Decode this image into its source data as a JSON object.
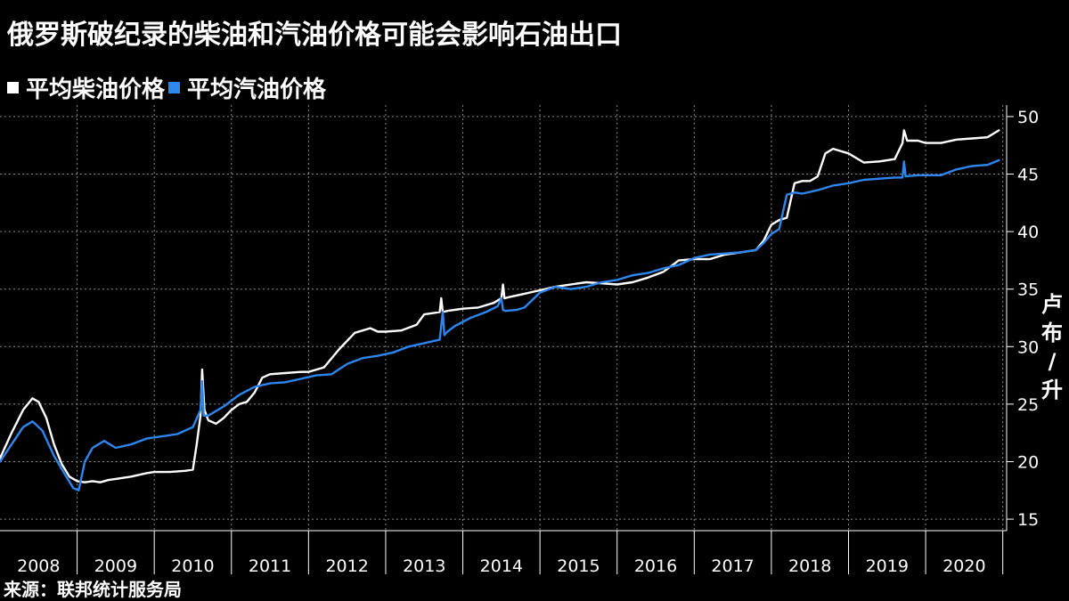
{
  "title": "俄罗斯破纪录的柴油和汽油价格可能会影响石油出口",
  "source": "来源：联邦统计服务局",
  "colors": {
    "background": "#000000",
    "diesel": "#ffffff",
    "gasoline": "#2e86f0",
    "grid": "#8a8a8a",
    "text": "#ffffff"
  },
  "chart_data": {
    "type": "line",
    "title": "俄罗斯破纪录的柴油和汽油价格可能会影响石油出口",
    "xlabel": "",
    "ylabel": "卢布/升",
    "ylim": [
      14,
      51
    ],
    "yticks": [
      15,
      20,
      25,
      30,
      35,
      40,
      45,
      50
    ],
    "xlim": [
      2008.0,
      2021.05
    ],
    "xticklabels": [
      "2008",
      "2009",
      "2010",
      "2011",
      "2012",
      "2013",
      "2014",
      "2015",
      "2016",
      "2017",
      "2018",
      "2019",
      "2020"
    ],
    "grid": true,
    "legend_position": "top-left",
    "series": [
      {
        "name": "平均柴油价格",
        "color": "#ffffff",
        "x": [
          2008.0,
          2008.15,
          2008.3,
          2008.42,
          2008.5,
          2008.6,
          2008.7,
          2008.8,
          2008.9,
          2009.0,
          2009.1,
          2009.2,
          2009.3,
          2009.4,
          2009.5,
          2009.7,
          2009.9,
          2010.0,
          2010.2,
          2010.4,
          2010.5,
          2010.55,
          2010.6,
          2010.62,
          2010.65,
          2010.7,
          2010.8,
          2010.9,
          2011.0,
          2011.1,
          2011.2,
          2011.3,
          2011.4,
          2011.5,
          2011.7,
          2011.9,
          2012.0,
          2012.2,
          2012.4,
          2012.6,
          2012.8,
          2012.9,
          2013.0,
          2013.2,
          2013.4,
          2013.5,
          2013.6,
          2013.7,
          2013.72,
          2013.74,
          2013.8,
          2014.0,
          2014.2,
          2014.4,
          2014.5,
          2014.52,
          2014.54,
          2014.6,
          2014.8,
          2015.0,
          2015.2,
          2015.4,
          2015.6,
          2015.8,
          2016.0,
          2016.2,
          2016.4,
          2016.6,
          2016.8,
          2017.0,
          2017.2,
          2017.4,
          2017.6,
          2017.8,
          2017.9,
          2018.0,
          2018.1,
          2018.2,
          2018.3,
          2018.4,
          2018.5,
          2018.6,
          2018.7,
          2018.8,
          2019.0,
          2019.2,
          2019.4,
          2019.6,
          2019.7,
          2019.72,
          2019.76,
          2019.9,
          2020.0,
          2020.2,
          2020.4,
          2020.6,
          2020.8,
          2020.95
        ],
        "y": [
          20.3,
          22.5,
          24.5,
          25.5,
          25.2,
          23.8,
          21.5,
          19.8,
          18.7,
          18.3,
          18.2,
          18.3,
          18.2,
          18.4,
          18.5,
          18.7,
          19.0,
          19.1,
          19.1,
          19.2,
          19.3,
          21.5,
          24.0,
          28.0,
          24.5,
          23.6,
          23.3,
          23.8,
          24.5,
          25.0,
          25.2,
          26.0,
          27.3,
          27.6,
          27.7,
          27.8,
          27.8,
          28.2,
          29.8,
          31.2,
          31.6,
          31.3,
          31.3,
          31.4,
          31.9,
          32.8,
          32.9,
          33.0,
          34.2,
          33.0,
          33.1,
          33.3,
          33.4,
          33.8,
          34.2,
          35.4,
          34.2,
          34.3,
          34.6,
          34.9,
          35.2,
          35.4,
          35.6,
          35.5,
          35.4,
          35.6,
          36.0,
          36.5,
          37.5,
          37.6,
          37.6,
          38.0,
          38.2,
          38.4,
          39.2,
          40.6,
          41.0,
          41.2,
          44.2,
          44.4,
          44.4,
          44.8,
          46.8,
          47.2,
          46.8,
          46.0,
          46.1,
          46.3,
          47.7,
          48.8,
          47.9,
          47.9,
          47.7,
          47.7,
          48.0,
          48.1,
          48.2,
          48.8
        ]
      },
      {
        "name": "平均汽油价格",
        "color": "#2e86f0",
        "x": [
          2008.0,
          2008.15,
          2008.3,
          2008.42,
          2008.55,
          2008.7,
          2008.85,
          2008.95,
          2009.02,
          2009.1,
          2009.2,
          2009.35,
          2009.5,
          2009.7,
          2009.9,
          2010.1,
          2010.3,
          2010.5,
          2010.6,
          2010.62,
          2010.64,
          2010.7,
          2010.9,
          2011.1,
          2011.3,
          2011.5,
          2011.7,
          2011.9,
          2012.1,
          2012.3,
          2012.5,
          2012.7,
          2012.9,
          2013.1,
          2013.3,
          2013.5,
          2013.7,
          2013.74,
          2013.76,
          2013.8,
          2013.9,
          2014.1,
          2014.3,
          2014.45,
          2014.5,
          2014.52,
          2014.55,
          2014.7,
          2014.8,
          2015.0,
          2015.2,
          2015.4,
          2015.6,
          2015.8,
          2016.0,
          2016.2,
          2016.4,
          2016.6,
          2016.8,
          2017.0,
          2017.2,
          2017.4,
          2017.6,
          2017.8,
          2017.9,
          2018.0,
          2018.1,
          2018.2,
          2018.3,
          2018.4,
          2018.6,
          2018.8,
          2019.0,
          2019.2,
          2019.4,
          2019.6,
          2019.7,
          2019.72,
          2019.74,
          2019.9,
          2020.0,
          2020.2,
          2020.4,
          2020.6,
          2020.8,
          2020.95
        ],
        "y": [
          20.0,
          21.5,
          23.0,
          23.5,
          22.7,
          20.5,
          18.8,
          17.7,
          17.5,
          20.0,
          21.2,
          21.8,
          21.2,
          21.5,
          22.0,
          22.2,
          22.4,
          23.0,
          24.5,
          27.0,
          24.0,
          24.0,
          24.8,
          25.8,
          26.5,
          26.8,
          26.9,
          27.2,
          27.5,
          27.6,
          28.5,
          29.0,
          29.2,
          29.5,
          30.0,
          30.3,
          30.6,
          33.0,
          31.0,
          31.3,
          31.8,
          32.5,
          33.0,
          33.5,
          34.2,
          33.2,
          33.1,
          33.2,
          33.4,
          34.7,
          35.2,
          35.0,
          35.2,
          35.6,
          35.8,
          36.2,
          36.4,
          36.8,
          37.1,
          37.7,
          38.0,
          38.1,
          38.2,
          38.4,
          39.0,
          39.8,
          40.2,
          43.2,
          43.4,
          43.3,
          43.6,
          44.0,
          44.2,
          44.5,
          44.6,
          44.7,
          44.7,
          46.1,
          44.8,
          44.9,
          44.9,
          44.9,
          45.4,
          45.7,
          45.8,
          46.2
        ]
      }
    ]
  }
}
